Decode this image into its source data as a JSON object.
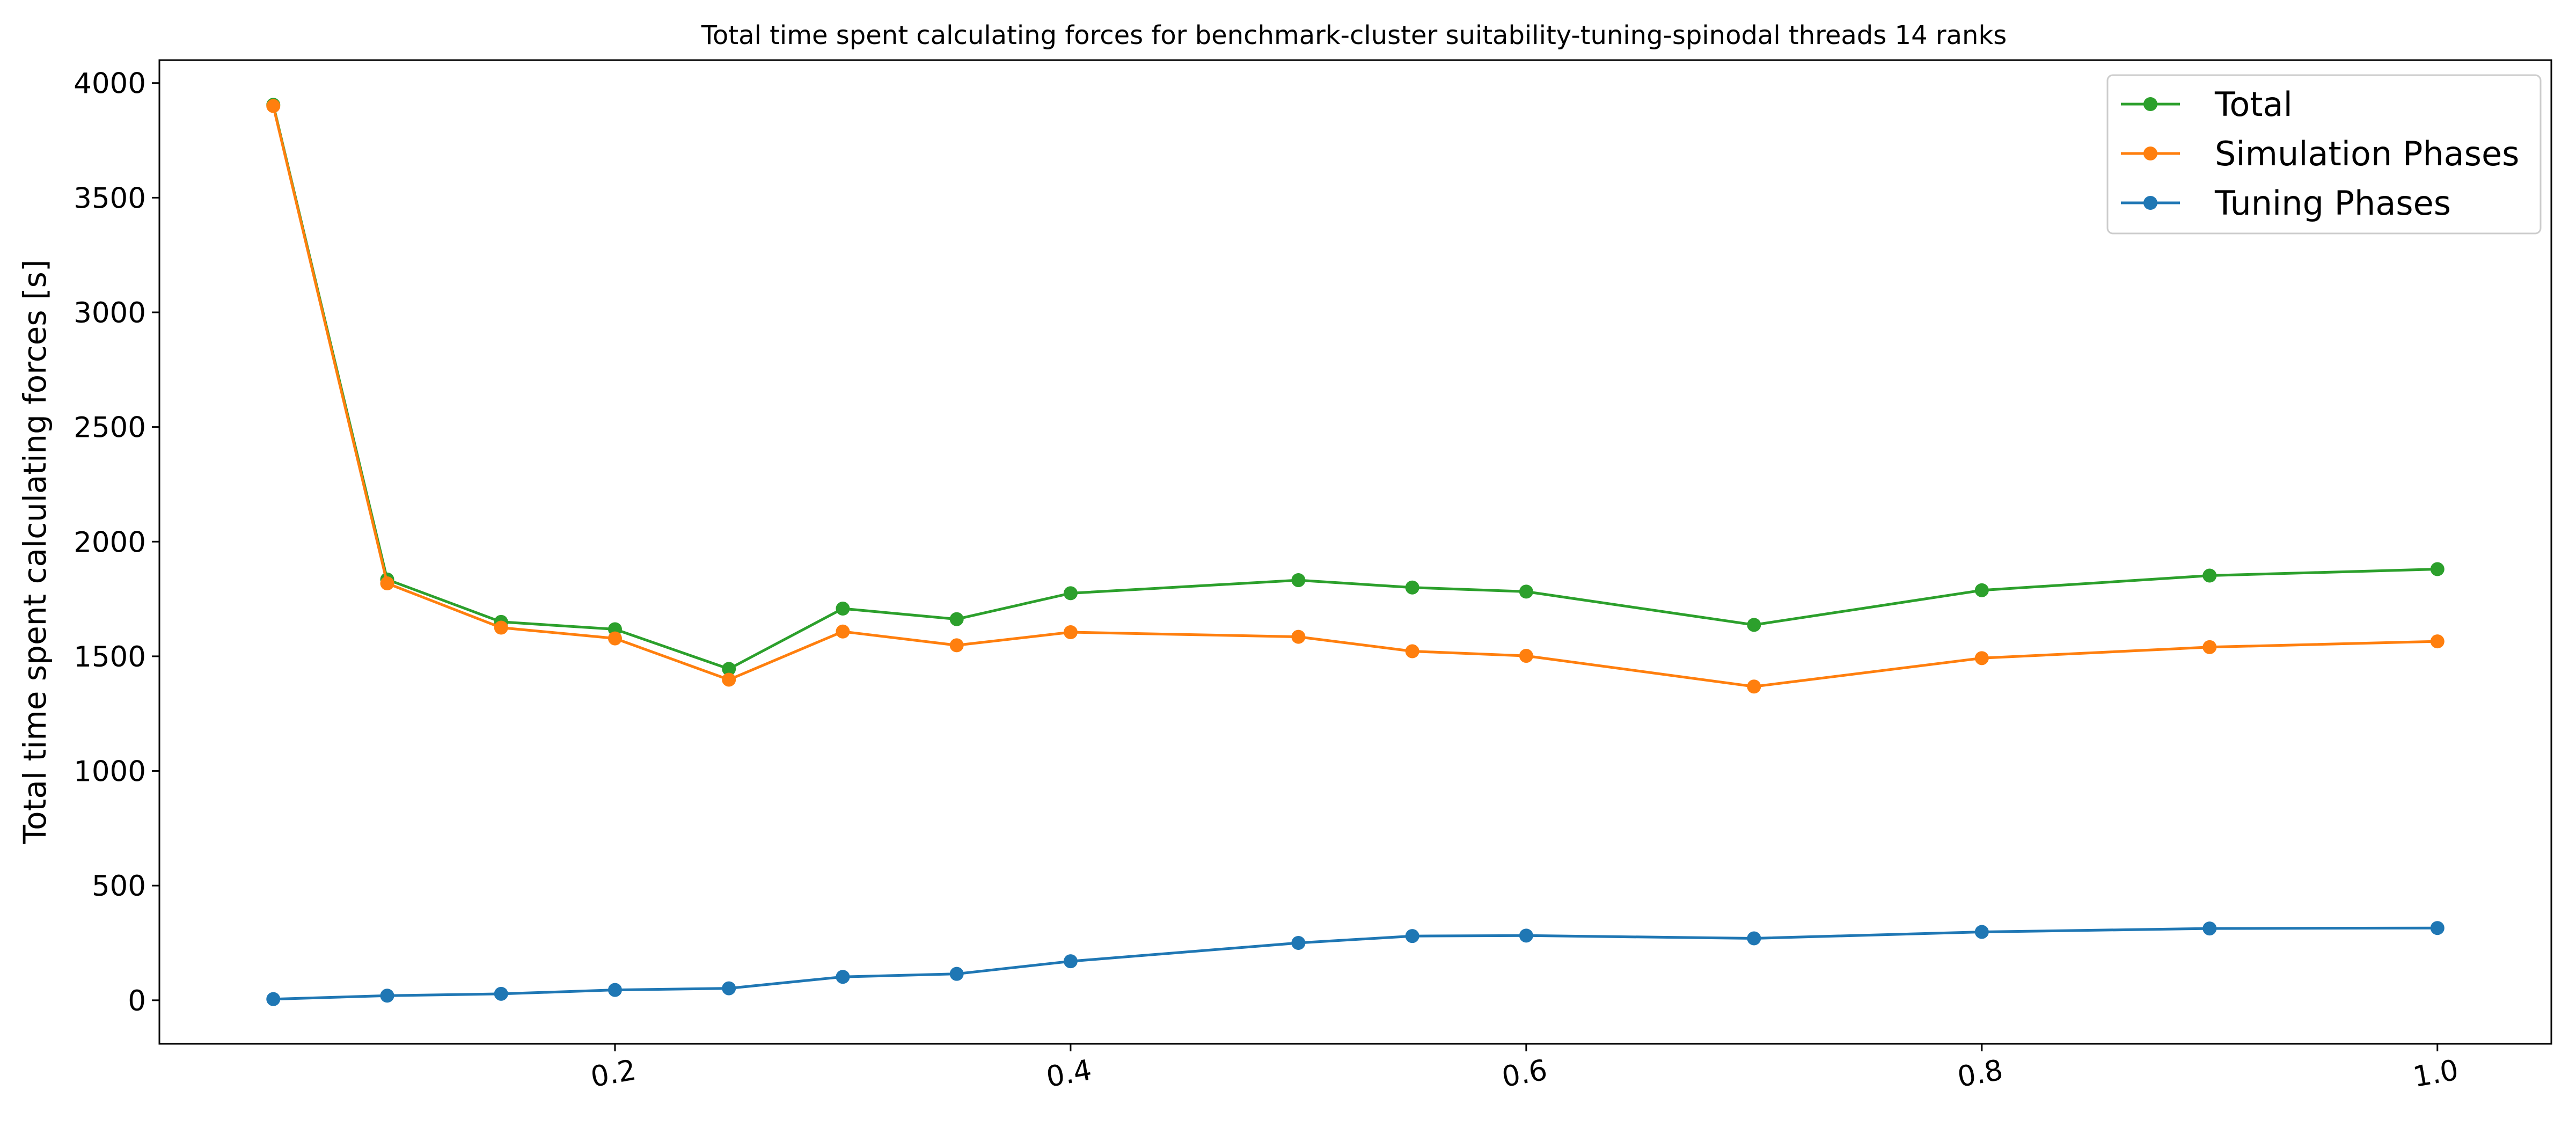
{
  "chart_data": {
    "type": "line",
    "title": "Total time spent calculating forces for benchmark-cluster suitability-tuning-spinodal threads 14 ranks",
    "xlabel": "",
    "ylabel": "Total time spent calculating forces [s]",
    "xlim": [
      0.0,
      1.05
    ],
    "ylim": [
      -190,
      4100
    ],
    "x_ticks": [
      "0.2",
      "0.4",
      "0.6",
      "0.8",
      "1.0"
    ],
    "y_ticks": [
      "0",
      "500",
      "1000",
      "1500",
      "2000",
      "2500",
      "3000",
      "3500",
      "4000"
    ],
    "x": [
      0.05,
      0.1,
      0.15,
      0.2,
      0.25,
      0.3,
      0.35,
      0.4,
      0.5,
      0.55,
      0.6,
      0.7,
      0.8,
      0.9,
      1.0
    ],
    "grid": false,
    "legend_position": "top-right",
    "series": [
      {
        "name": "Total",
        "color": "#2ca02c",
        "values": [
          3905,
          1835,
          1650,
          1618,
          1445,
          1708,
          1662,
          1775,
          1832,
          1800,
          1782,
          1637,
          1788,
          1852,
          1880
        ]
      },
      {
        "name": "Simulation Phases",
        "color": "#ff7f0e",
        "values": [
          3900,
          1818,
          1625,
          1578,
          1398,
          1608,
          1548,
          1605,
          1585,
          1522,
          1502,
          1368,
          1492,
          1540,
          1565
        ]
      },
      {
        "name": "Tuning Phases",
        "color": "#1f77b4",
        "values": [
          5,
          20,
          28,
          45,
          52,
          102,
          115,
          170,
          250,
          280,
          282,
          270,
          298,
          313,
          315
        ]
      }
    ]
  }
}
